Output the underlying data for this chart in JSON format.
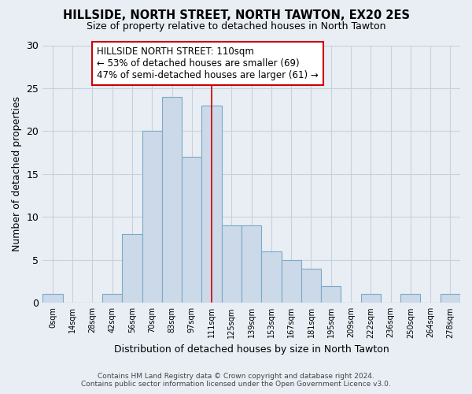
{
  "title": "HILLSIDE, NORTH STREET, NORTH TAWTON, EX20 2ES",
  "subtitle": "Size of property relative to detached houses in North Tawton",
  "xlabel": "Distribution of detached houses by size in North Tawton",
  "ylabel": "Number of detached properties",
  "bin_labels": [
    "0sqm",
    "14sqm",
    "28sqm",
    "42sqm",
    "56sqm",
    "70sqm",
    "83sqm",
    "97sqm",
    "111sqm",
    "125sqm",
    "139sqm",
    "153sqm",
    "167sqm",
    "181sqm",
    "195sqm",
    "209sqm",
    "222sqm",
    "236sqm",
    "250sqm",
    "264sqm",
    "278sqm"
  ],
  "bar_values": [
    1,
    0,
    0,
    1,
    8,
    20,
    24,
    17,
    23,
    9,
    9,
    6,
    5,
    4,
    2,
    0,
    1,
    0,
    1,
    0,
    1
  ],
  "bar_color": "#ccd9e8",
  "bar_edge_color": "#7aaac8",
  "highlight_index": 8,
  "highlight_line_color": "#cc0000",
  "ylim": [
    0,
    30
  ],
  "yticks": [
    0,
    5,
    10,
    15,
    20,
    25,
    30
  ],
  "annotation_title": "HILLSIDE NORTH STREET: 110sqm",
  "annotation_line1": "← 53% of detached houses are smaller (69)",
  "annotation_line2": "47% of semi-detached houses are larger (61) →",
  "annotation_box_color": "#ffffff",
  "annotation_box_edge": "#cc0000",
  "footer_line1": "Contains HM Land Registry data © Crown copyright and database right 2024.",
  "footer_line2": "Contains public sector information licensed under the Open Government Licence v3.0.",
  "bg_color": "#e8eef4",
  "plot_bg_color": "#e8eef4",
  "grid_color": "#c8d0dc"
}
